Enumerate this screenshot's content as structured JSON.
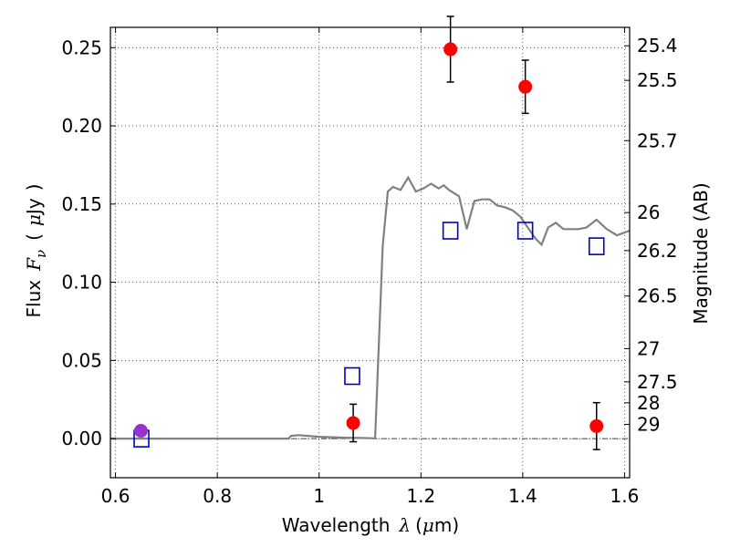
{
  "chart_data": {
    "type": "scatter",
    "xlabel": {
      "prefix": "Wavelength",
      "symbol": "λ",
      "unit_open": "(",
      "unit_mu": "μ",
      "unit_rest": "m)"
    },
    "ylabel": {
      "prefix": "Flux",
      "symbol": "F",
      "subscript": "ν",
      "unit_open": "(",
      "unit_mu": "μ",
      "unit_rest": "Jy",
      "unit_close": ")"
    },
    "ylabel_right": "Magnitude (AB)",
    "xlim": [
      0.59,
      1.61
    ],
    "ylim": [
      -0.025,
      0.263
    ],
    "grid": true,
    "x_ticks": [
      {
        "value": 0.6,
        "label": "0.6"
      },
      {
        "value": 0.8,
        "label": "0.8"
      },
      {
        "value": 1.0,
        "label": "1"
      },
      {
        "value": 1.2,
        "label": "1.2"
      },
      {
        "value": 1.4,
        "label": "1.4"
      },
      {
        "value": 1.6,
        "label": "1.6"
      }
    ],
    "y_ticks": [
      {
        "value": 0.0,
        "label": "0.00"
      },
      {
        "value": 0.05,
        "label": "0.05"
      },
      {
        "value": 0.1,
        "label": "0.10"
      },
      {
        "value": 0.15,
        "label": "0.15"
      },
      {
        "value": 0.2,
        "label": "0.20"
      },
      {
        "value": 0.25,
        "label": "0.25"
      }
    ],
    "mag_ticks": [
      {
        "value": 25.4,
        "label": "25.4"
      },
      {
        "value": 25.5,
        "label": "25.5"
      },
      {
        "value": 25.7,
        "label": "25.7"
      },
      {
        "value": 26.0,
        "label": "26"
      },
      {
        "value": 26.2,
        "label": "26.2"
      },
      {
        "value": 26.5,
        "label": "26.5"
      },
      {
        "value": 27.0,
        "label": "27"
      },
      {
        "value": 27.5,
        "label": "27.5"
      },
      {
        "value": 28.0,
        "label": "28"
      },
      {
        "value": 29.0,
        "label": "29"
      }
    ],
    "model_line": {
      "color": "#808080",
      "points": [
        [
          0.59,
          0.0
        ],
        [
          0.94,
          0.0
        ],
        [
          0.945,
          0.0018
        ],
        [
          0.96,
          0.0022
        ],
        [
          1.0,
          0.0012
        ],
        [
          1.05,
          0.0006
        ],
        [
          1.08,
          0.0004
        ],
        [
          1.11,
          0.0002
        ],
        [
          1.125,
          0.123
        ],
        [
          1.135,
          0.158
        ],
        [
          1.145,
          0.161
        ],
        [
          1.16,
          0.159
        ],
        [
          1.175,
          0.167
        ],
        [
          1.19,
          0.158
        ],
        [
          1.205,
          0.16
        ],
        [
          1.22,
          0.163
        ],
        [
          1.235,
          0.16
        ],
        [
          1.245,
          0.162
        ],
        [
          1.255,
          0.159
        ],
        [
          1.265,
          0.157
        ],
        [
          1.275,
          0.155
        ],
        [
          1.29,
          0.134
        ],
        [
          1.305,
          0.152
        ],
        [
          1.32,
          0.153
        ],
        [
          1.335,
          0.153
        ],
        [
          1.35,
          0.149
        ],
        [
          1.365,
          0.148
        ],
        [
          1.38,
          0.146
        ],
        [
          1.395,
          0.142
        ],
        [
          1.41,
          0.135
        ],
        [
          1.425,
          0.128
        ],
        [
          1.437,
          0.124
        ],
        [
          1.45,
          0.135
        ],
        [
          1.465,
          0.138
        ],
        [
          1.48,
          0.134
        ],
        [
          1.495,
          0.134
        ],
        [
          1.51,
          0.134
        ],
        [
          1.525,
          0.135
        ],
        [
          1.545,
          0.14
        ],
        [
          1.565,
          0.134
        ],
        [
          1.585,
          0.13
        ],
        [
          1.61,
          0.133
        ]
      ]
    },
    "observed": {
      "color": "#ff0000",
      "points": [
        {
          "x": 0.65,
          "y": 0.005,
          "err": 0.003,
          "color": "#9932cc"
        },
        {
          "x": 1.067,
          "y": 0.01,
          "err": 0.012
        },
        {
          "x": 1.258,
          "y": 0.249,
          "err": 0.021
        },
        {
          "x": 1.405,
          "y": 0.225,
          "err": 0.017
        },
        {
          "x": 1.545,
          "y": 0.008,
          "err": 0.015
        }
      ]
    },
    "model_bands": {
      "color": "#0000cc",
      "points": [
        {
          "x": 0.651,
          "y": 0.0
        },
        {
          "x": 1.065,
          "y": 0.04
        },
        {
          "x": 1.258,
          "y": 0.133
        },
        {
          "x": 1.405,
          "y": 0.133
        },
        {
          "x": 1.545,
          "y": 0.123
        }
      ]
    }
  }
}
